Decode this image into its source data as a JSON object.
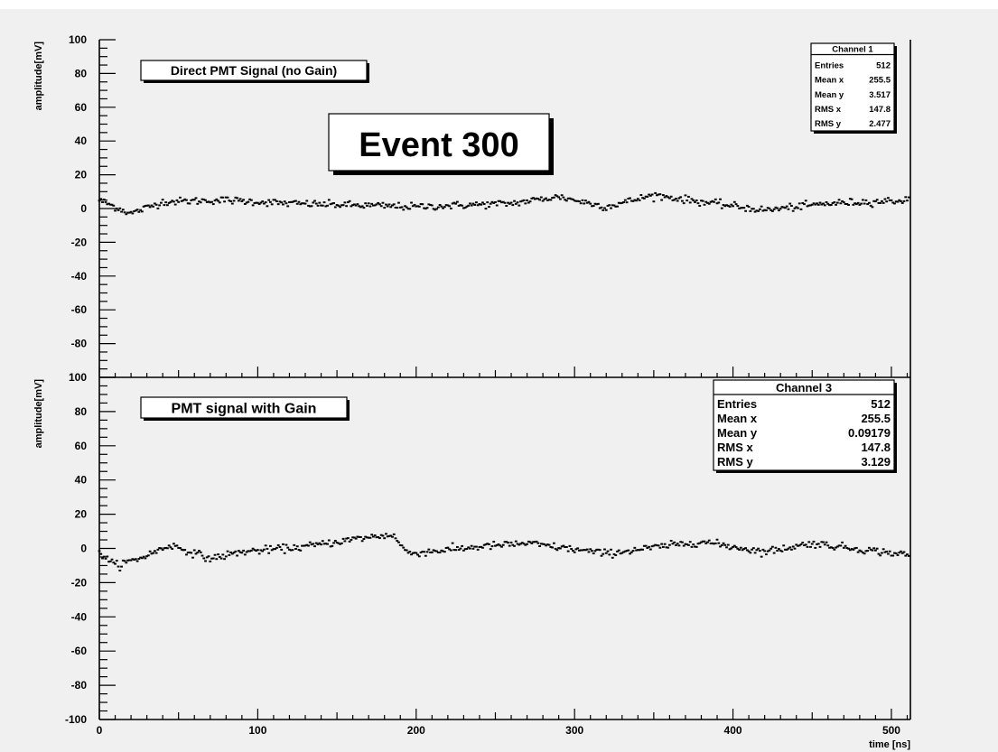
{
  "event_label": "Event 300",
  "chart_data": [
    {
      "type": "scatter",
      "label": "Direct PMT Signal (no Gain)",
      "xlabel": "",
      "ylabel": "amplitude[mV]",
      "xlim": [
        0,
        512
      ],
      "ylim": [
        -100,
        100
      ],
      "x_ticks": [],
      "y_ticks": [
        {
          "v": 100,
          "t": "100"
        },
        {
          "v": 80,
          "t": "80"
        },
        {
          "v": 60,
          "t": "60"
        },
        {
          "v": 40,
          "t": "40"
        },
        {
          "v": 20,
          "t": "20"
        },
        {
          "v": 0,
          "t": "0"
        },
        {
          "v": -20,
          "t": "-20"
        },
        {
          "v": -40,
          "t": "-40"
        },
        {
          "v": -60,
          "t": "-60"
        },
        {
          "v": -80,
          "t": "-80"
        }
      ],
      "series": [
        {
          "n": 512,
          "baseline": 3.5,
          "rms": 2.5,
          "profile": [
            [
              0,
              5
            ],
            [
              10,
              1
            ],
            [
              20,
              -3
            ],
            [
              40,
              4
            ],
            [
              80,
              5
            ],
            [
              120,
              3
            ],
            [
              160,
              2
            ],
            [
              200,
              1
            ],
            [
              260,
              3
            ],
            [
              290,
              7
            ],
            [
              320,
              1
            ],
            [
              350,
              8
            ],
            [
              380,
              4
            ],
            [
              420,
              -1
            ],
            [
              460,
              3
            ],
            [
              512,
              5
            ]
          ]
        }
      ],
      "stats": {
        "title": "Channel 1",
        "rows": [
          {
            "k": "Entries",
            "v": "512"
          },
          {
            "k": "Mean x",
            "v": "255.5"
          },
          {
            "k": "Mean y",
            "v": "3.517"
          },
          {
            "k": "RMS x",
            "v": "147.8"
          },
          {
            "k": "RMS y",
            "v": "2.477"
          }
        ]
      }
    },
    {
      "type": "scatter",
      "label": "PMT signal with Gain",
      "xlabel": "time [ns]",
      "ylabel": "amplitude[mV]",
      "xlim": [
        0,
        512
      ],
      "ylim": [
        -100,
        100
      ],
      "x_ticks": [
        {
          "v": 0,
          "t": "0"
        },
        {
          "v": 100,
          "t": "100"
        },
        {
          "v": 200,
          "t": "200"
        },
        {
          "v": 300,
          "t": "300"
        },
        {
          "v": 400,
          "t": "400"
        },
        {
          "v": 500,
          "t": "500"
        }
      ],
      "y_ticks": [
        {
          "v": 100,
          "t": "100"
        },
        {
          "v": 80,
          "t": "80"
        },
        {
          "v": 60,
          "t": "60"
        },
        {
          "v": 40,
          "t": "40"
        },
        {
          "v": 20,
          "t": "20"
        },
        {
          "v": 0,
          "t": "0"
        },
        {
          "v": -20,
          "t": "-20"
        },
        {
          "v": -40,
          "t": "-40"
        },
        {
          "v": -60,
          "t": "-60"
        },
        {
          "v": -80,
          "t": "-80"
        },
        {
          "v": -100,
          "t": "-100"
        }
      ],
      "series": [
        {
          "n": 512,
          "baseline": 0.09,
          "rms": 3.1,
          "profile": [
            [
              0,
              -2
            ],
            [
              10,
              -10
            ],
            [
              25,
              -6
            ],
            [
              45,
              2
            ],
            [
              70,
              -6
            ],
            [
              90,
              -2
            ],
            [
              130,
              1
            ],
            [
              165,
              6
            ],
            [
              185,
              8
            ],
            [
              195,
              -3
            ],
            [
              240,
              1
            ],
            [
              270,
              3
            ],
            [
              320,
              -3
            ],
            [
              380,
              4
            ],
            [
              420,
              -2
            ],
            [
              450,
              3
            ],
            [
              512,
              -4
            ]
          ]
        }
      ],
      "stats": {
        "title": "Channel 3",
        "rows": [
          {
            "k": "Entries",
            "v": "512"
          },
          {
            "k": "Mean x",
            "v": "255.5"
          },
          {
            "k": "Mean y",
            "v": "0.09179"
          },
          {
            "k": "RMS x",
            "v": "147.8"
          },
          {
            "k": "RMS y",
            "v": "3.129"
          }
        ]
      }
    }
  ]
}
